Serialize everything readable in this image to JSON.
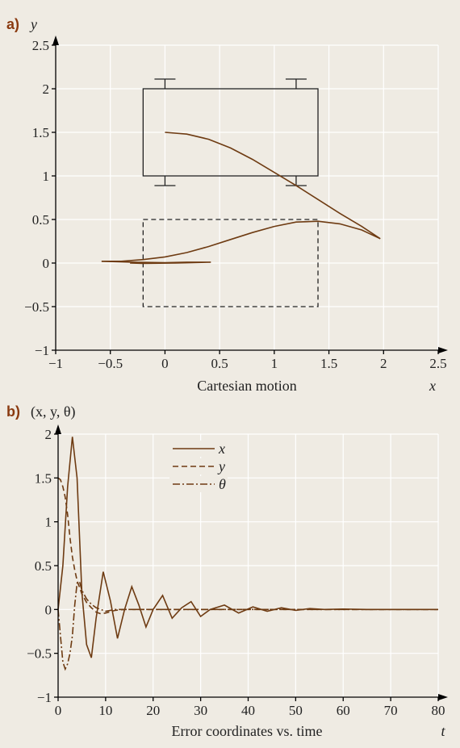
{
  "chart_data": [
    {
      "type": "line",
      "panel": "a)",
      "ylabel": "y",
      "xlabel": "x",
      "caption": "Cartesian motion",
      "xlim": [
        -1,
        2.5
      ],
      "ylim": [
        -1,
        2.5
      ],
      "x_ticks": [
        "−1",
        "−0.5",
        "0",
        "0.5",
        "1",
        "1.5",
        "2",
        "2.5"
      ],
      "y_ticks": [
        "−1",
        "−0.5",
        "0",
        "0.5",
        "1",
        "1.5",
        "2",
        "2.5"
      ],
      "grid": true,
      "series": [
        {
          "style": "solid",
          "x": [
            0,
            0.2,
            0.4,
            0.6,
            0.8,
            1.0,
            1.2,
            1.4,
            1.6,
            1.8,
            1.97
          ],
          "y": [
            1.5,
            1.48,
            1.42,
            1.32,
            1.19,
            1.04,
            0.89,
            0.73,
            0.57,
            0.42,
            0.28
          ]
        },
        {
          "style": "solid",
          "x": [
            1.97,
            1.8,
            1.6,
            1.4,
            1.2,
            1.0,
            0.8,
            0.6,
            0.4,
            0.2,
            0,
            -0.2,
            -0.4,
            -0.58
          ],
          "y": [
            0.28,
            0.38,
            0.45,
            0.48,
            0.47,
            0.42,
            0.35,
            0.27,
            0.19,
            0.12,
            0.07,
            0.04,
            0.02,
            0.02
          ]
        },
        {
          "style": "solid",
          "x": [
            -0.58,
            -0.3,
            0.0,
            0.2,
            0.42,
            0.1,
            -0.2,
            -0.32
          ],
          "y": [
            0.02,
            0.01,
            0.005,
            0.01,
            0.01,
            0.0,
            -0.005,
            0.0
          ]
        }
      ],
      "shapes": [
        {
          "kind": "rect",
          "style": "solid",
          "x": [
            -0.2,
            1.4
          ],
          "y": [
            1.0,
            2.0
          ]
        },
        {
          "kind": "rect",
          "style": "dashed",
          "x": [
            -0.2,
            1.4
          ],
          "y": [
            -0.5,
            0.5
          ]
        },
        {
          "kind": "wheel",
          "x": 0,
          "y": 2.0,
          "dir": "up"
        },
        {
          "kind": "wheel",
          "x": 1.2,
          "y": 2.0,
          "dir": "up"
        },
        {
          "kind": "wheel",
          "x": 0,
          "y": 1.0,
          "dir": "down"
        },
        {
          "kind": "wheel",
          "x": 1.2,
          "y": 1.0,
          "dir": "down"
        }
      ]
    },
    {
      "type": "line",
      "panel": "b)",
      "ylabel": "(x, y, θ)",
      "xlabel": "t",
      "caption": "Error coordinates vs. time",
      "xlim": [
        0,
        80
      ],
      "ylim": [
        -1,
        2
      ],
      "x_ticks": [
        "0",
        "10",
        "20",
        "30",
        "40",
        "50",
        "60",
        "70",
        "80"
      ],
      "y_ticks": [
        "−1",
        "−0.5",
        "0",
        "0.5",
        "1",
        "1.5",
        "2"
      ],
      "grid": true,
      "legend": [
        "x",
        "y",
        "θ"
      ],
      "series": [
        {
          "name": "x",
          "style": "solid",
          "x": [
            0,
            1,
            2,
            3,
            4,
            5,
            6,
            7,
            8,
            9.5,
            11,
            12.5,
            14,
            15.5,
            17,
            18.5,
            20,
            22,
            24,
            26,
            28,
            30,
            32,
            35,
            38,
            41,
            44,
            47,
            50,
            53,
            56,
            60,
            65,
            70,
            75,
            80
          ],
          "y": [
            0,
            0.5,
            1.4,
            1.97,
            1.5,
            0.2,
            -0.4,
            -0.55,
            -0.1,
            0.43,
            0.1,
            -0.33,
            0.0,
            0.26,
            0.05,
            -0.2,
            0.0,
            0.16,
            -0.1,
            0.02,
            0.09,
            -0.08,
            0.0,
            0.05,
            -0.04,
            0.03,
            -0.02,
            0.02,
            -0.01,
            0.01,
            0.0,
            0.005,
            0.0,
            0.0,
            0.0,
            0.0
          ]
        },
        {
          "name": "y",
          "style": "dashed",
          "x": [
            0,
            0.5,
            1,
            1.5,
            2,
            2.5,
            3,
            3.5,
            4,
            5,
            6,
            7,
            8,
            9,
            10,
            12,
            14,
            18,
            22,
            30,
            40,
            60,
            80
          ],
          "y": [
            1.5,
            1.48,
            1.4,
            1.28,
            1.08,
            0.82,
            0.6,
            0.45,
            0.33,
            0.18,
            0.08,
            0.02,
            -0.03,
            -0.05,
            -0.04,
            -0.01,
            0.0,
            0.0,
            0.0,
            0.0,
            0.0,
            0.0,
            0.0
          ]
        },
        {
          "name": "θ",
          "style": "dashdot",
          "x": [
            0,
            0.5,
            1,
            1.5,
            2,
            2.5,
            3,
            3.5,
            4,
            4.5,
            5,
            6,
            7,
            8,
            10,
            12,
            15,
            20,
            30,
            40,
            60,
            80
          ],
          "y": [
            0,
            -0.3,
            -0.6,
            -0.68,
            -0.62,
            -0.5,
            -0.3,
            0.05,
            0.3,
            0.32,
            0.22,
            0.12,
            0.06,
            0.02,
            -0.02,
            0.0,
            0.0,
            0.0,
            0.0,
            0.0,
            0.0,
            0.0
          ]
        }
      ]
    }
  ]
}
